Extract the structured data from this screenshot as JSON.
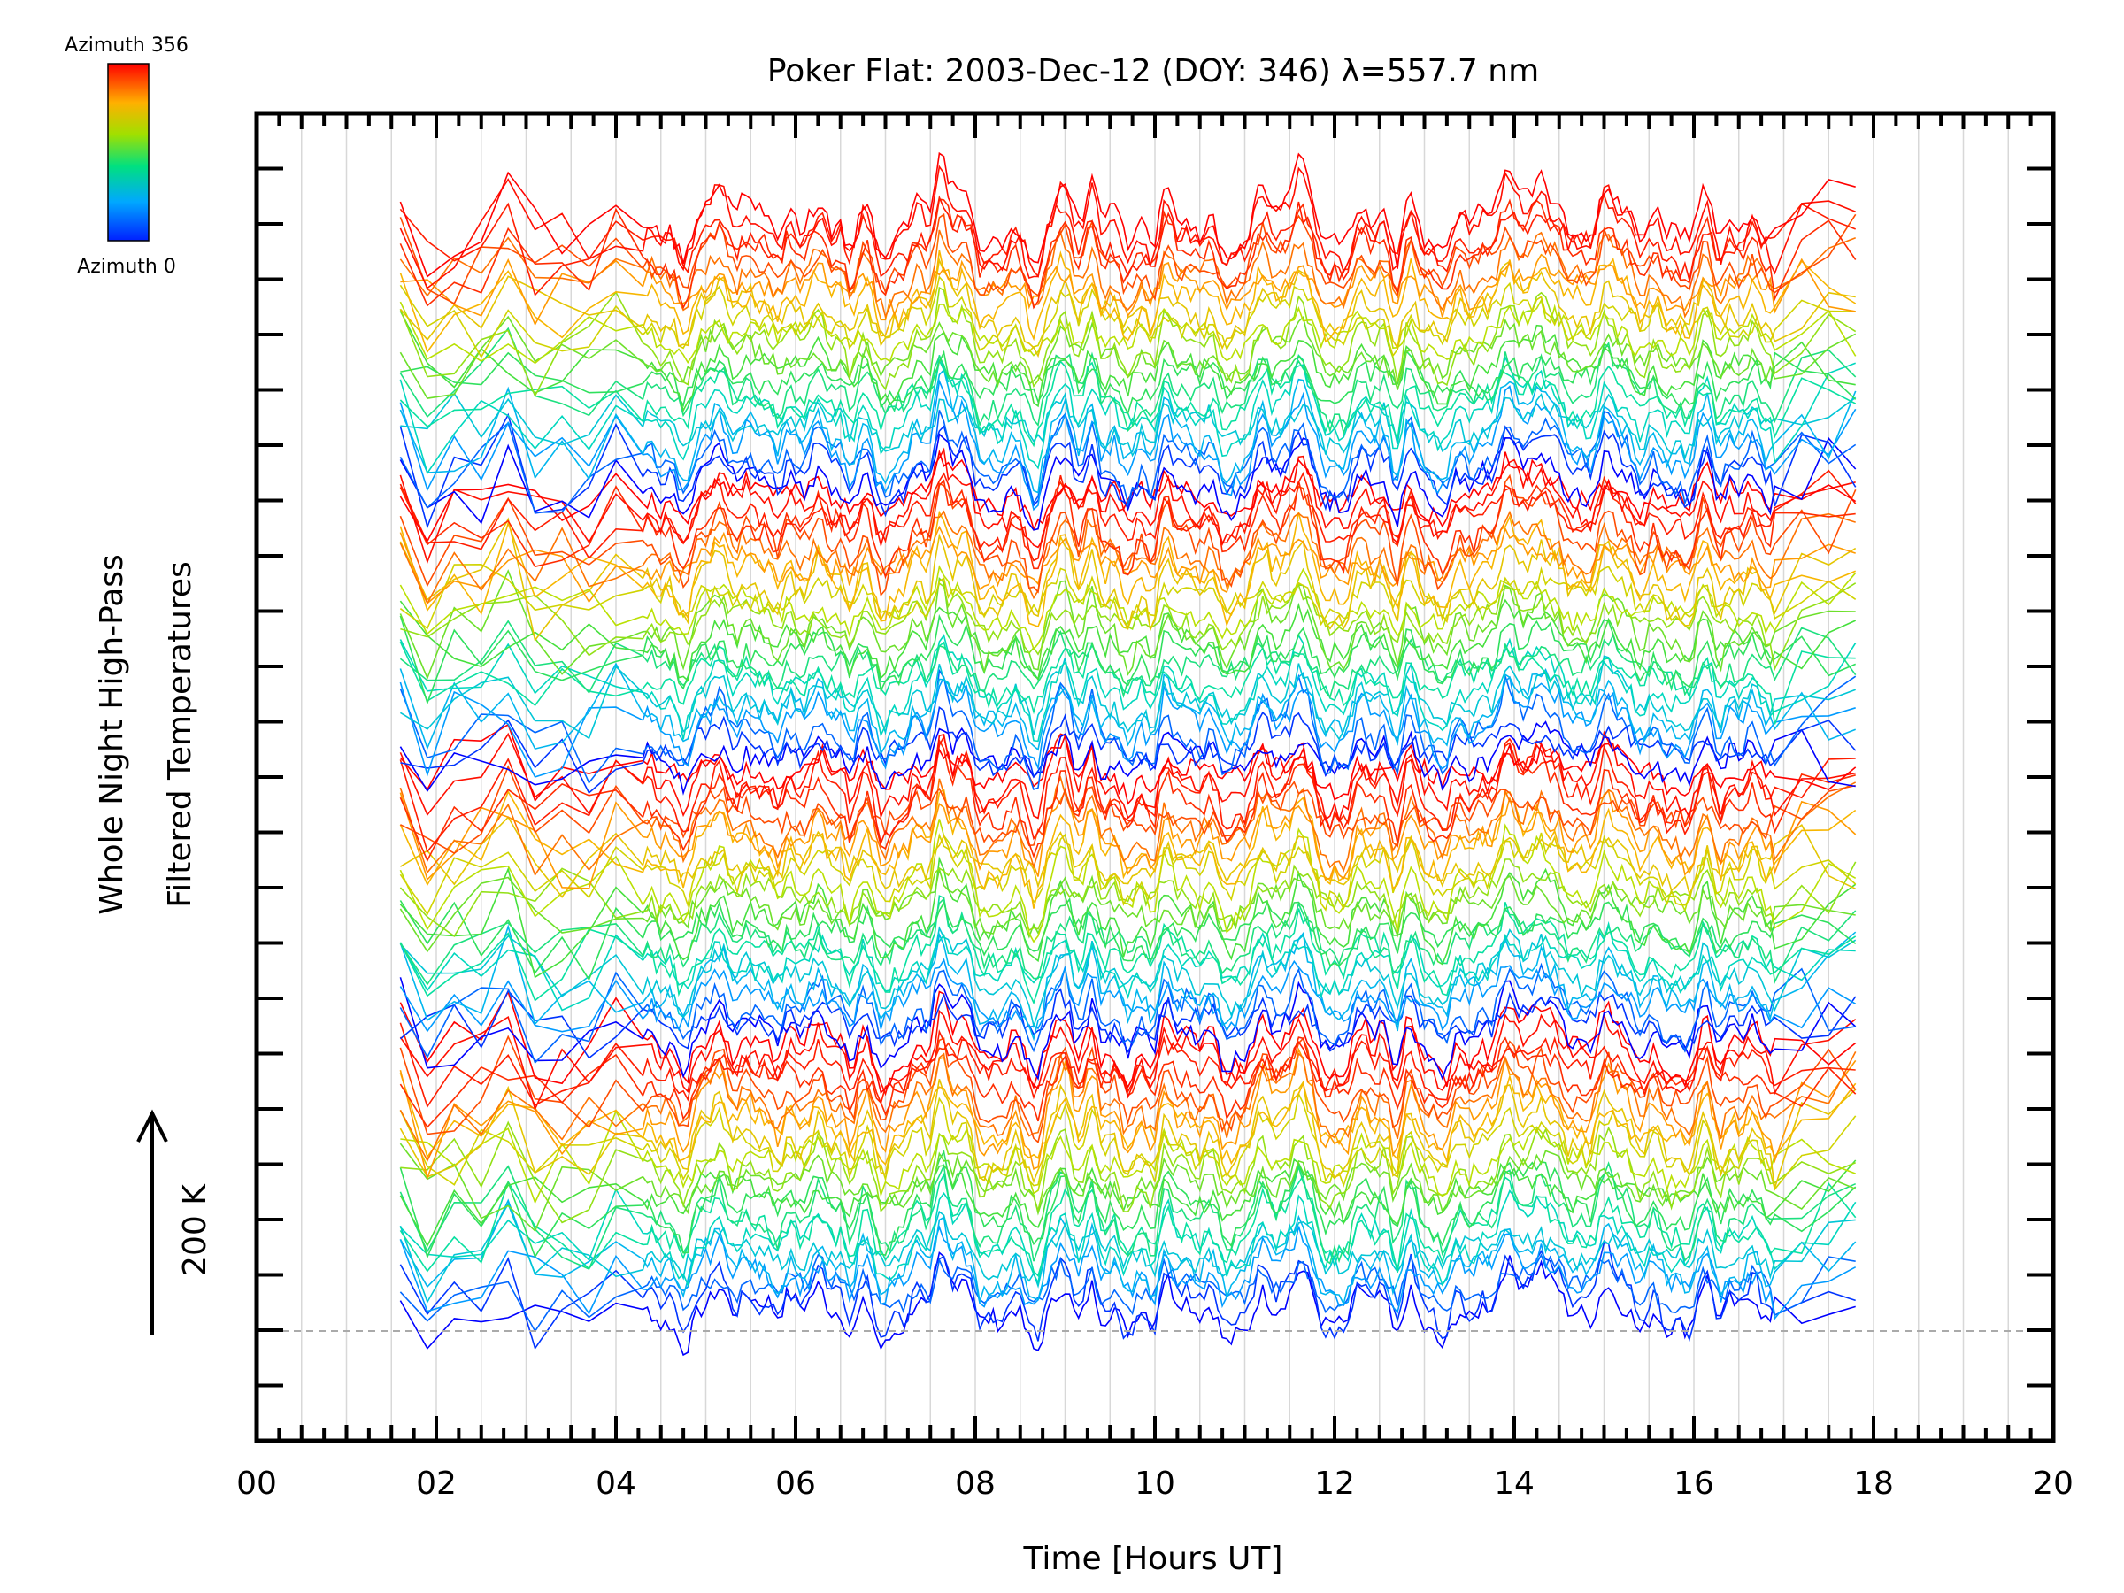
{
  "chart_data": {
    "type": "line",
    "title": "Poker Flat: 2003-Dec-12 (DOY: 346) λ=557.7 nm",
    "xlabel": "Time [Hours UT]",
    "ylabel_lines": [
      "Whole Night High-Pass",
      "Filtered Temperatures"
    ],
    "scale_label": "200 K",
    "xlim": [
      0,
      20
    ],
    "xtick_labels": [
      "00",
      "02",
      "04",
      "06",
      "08",
      "10",
      "12",
      "14",
      "16",
      "18",
      "20"
    ],
    "xticks": [
      0,
      2,
      4,
      6,
      8,
      10,
      12,
      14,
      16,
      18,
      20
    ],
    "data_time_range": [
      1.6,
      18.1
    ],
    "grid": true,
    "colorbar": {
      "top_label": "Azimuth 356",
      "bottom_label": "Azimuth 0",
      "azimuth_range": [
        0,
        356
      ],
      "colors": [
        "#0000ff",
        "#00aaff",
        "#00e0b0",
        "#40e040",
        "#c0e000",
        "#ffb000",
        "#ff3000",
        "#ff0000"
      ]
    },
    "series_groups": 4,
    "traces_per_group": 24
  }
}
